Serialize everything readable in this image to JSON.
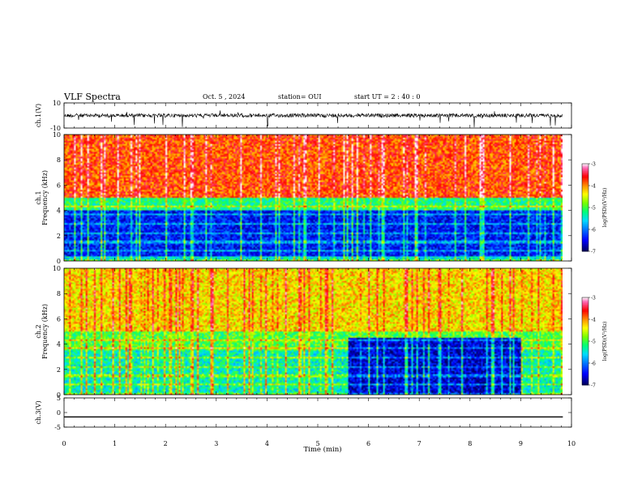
{
  "header": {
    "title": "VLF Spectra",
    "date": "Oct. 5 , 2024",
    "station": "station= OUI",
    "start": "start  UT =  2 : 40 : 0"
  },
  "colorbar": {
    "label": "log(PSD)(V²/Hz)",
    "ticks": [
      "-3",
      "-4",
      "-5",
      "-6",
      "-7"
    ],
    "colors": [
      "#000000",
      "#0000ff",
      "#00aaff",
      "#00ff66",
      "#ffff00",
      "#ff0000",
      "#ff80c0",
      "#ffffff"
    ]
  },
  "chart_data": [
    {
      "type": "line",
      "name": "ch1-waveform",
      "ylabel": "ch.1(V)",
      "ylim": [
        -10,
        10
      ],
      "yticks": [
        "10",
        "-10"
      ],
      "x_range_min": [
        0,
        9.83
      ],
      "baseline": 0,
      "amplitude": 1.5,
      "note_visible": "noisy waveform with sporadic spikes"
    },
    {
      "type": "heatmap",
      "name": "ch1-spectrogram",
      "ylabel": "ch.1\nFrequency (kHz)",
      "ylabel_line1": "ch.1",
      "ylabel_line2": "Frequency (kHz)",
      "ylim": [
        0,
        10
      ],
      "yticks": [
        "0",
        "2",
        "4",
        "6",
        "8",
        "10"
      ],
      "x_range_min": [
        0,
        9.83
      ],
      "bands": [
        {
          "f_lo": 0.0,
          "f_hi": 0.4,
          "level": -5.5
        },
        {
          "f_lo": 0.4,
          "f_hi": 4.0,
          "level": -6.4
        },
        {
          "f_lo": 4.0,
          "f_hi": 5.0,
          "level": -5.2
        },
        {
          "f_lo": 5.0,
          "f_hi": 10.0,
          "level": -3.8
        }
      ]
    },
    {
      "type": "heatmap",
      "name": "ch2-spectrogram",
      "ylabel_line1": "ch.2",
      "ylabel_line2": "Frequency (kHz)",
      "ylim": [
        0,
        10
      ],
      "yticks": [
        "0",
        "2",
        "4",
        "6",
        "8",
        "10"
      ],
      "x_range_min": [
        0,
        9.83
      ],
      "bands": [
        {
          "f_lo": 0.0,
          "f_hi": 3.5,
          "level": -5.4
        },
        {
          "f_lo": 3.5,
          "f_hi": 5.0,
          "level": -5.0
        },
        {
          "f_lo": 5.0,
          "f_hi": 10.0,
          "level": -4.3
        }
      ],
      "quiet_region": {
        "t_start": 5.6,
        "t_end": 9.0,
        "f_lo": 0.0,
        "f_hi": 4.5,
        "level": -6.6
      }
    },
    {
      "type": "line",
      "name": "ch3-waveform",
      "ylabel": "ch.3(V)",
      "ylim": [
        -5,
        5
      ],
      "yticks": [
        "5",
        "0",
        "-5"
      ],
      "x_range_min": [
        0,
        9.83
      ],
      "values_constant": -1.5
    }
  ],
  "xaxis": {
    "label": "Time (min)",
    "xlim": [
      0,
      10
    ],
    "ticks": [
      "0",
      "1",
      "2",
      "3",
      "4",
      "5",
      "6",
      "7",
      "8",
      "9",
      "10"
    ]
  }
}
